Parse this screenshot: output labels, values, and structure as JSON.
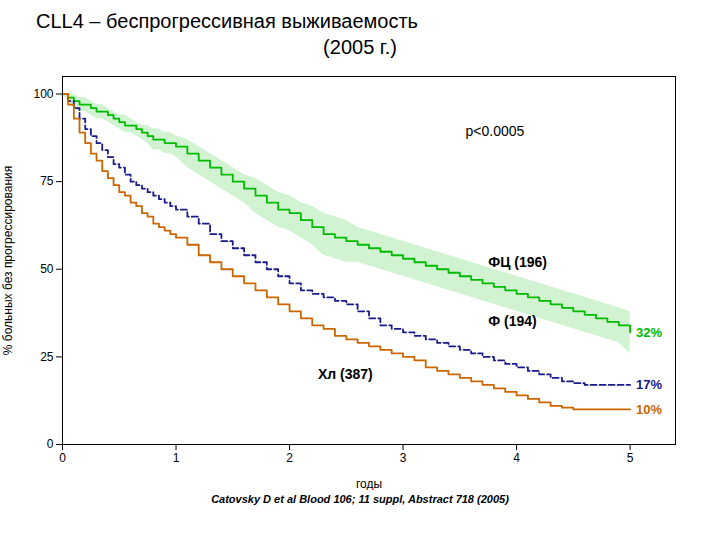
{
  "chart_data": {
    "type": "step",
    "title": "CLL4 – беспрогрессивная выживаемость",
    "subtitle": "(2005 г.)",
    "caption": "Catovsky D et al Blood 106; 11 suppl, Abstract 718 (2005)",
    "xlabel": "годы",
    "ylabel": "% больных без прогрессирования",
    "xlim": [
      0,
      5.4
    ],
    "ylim": [
      0,
      105
    ],
    "xticks": [
      0,
      1,
      2,
      3,
      4,
      5
    ],
    "yticks": [
      0,
      25,
      50,
      75,
      100
    ],
    "grid": false,
    "annotations": [
      {
        "text": "p<0.0005",
        "x": 3.55,
        "y": 91
      }
    ],
    "x": [
      0,
      0.05,
      0.1,
      0.15,
      0.2,
      0.25,
      0.3,
      0.35,
      0.4,
      0.45,
      0.5,
      0.55,
      0.6,
      0.65,
      0.7,
      0.75,
      0.8,
      0.85,
      0.9,
      0.95,
      1.0,
      1.1,
      1.2,
      1.3,
      1.4,
      1.5,
      1.6,
      1.7,
      1.8,
      1.9,
      2.0,
      2.1,
      2.2,
      2.3,
      2.4,
      2.5,
      2.6,
      2.7,
      2.8,
      2.9,
      3.0,
      3.1,
      3.2,
      3.3,
      3.4,
      3.5,
      3.6,
      3.7,
      3.8,
      3.9,
      4.0,
      4.1,
      4.2,
      4.3,
      4.4,
      4.5,
      4.6,
      4.7,
      4.8,
      4.9,
      5.0
    ],
    "series": [
      {
        "name": "ФЦ (196)",
        "color": "#00bb00",
        "line_style": "solid",
        "label_x": 3.75,
        "label_y": 52,
        "end_label": "32%",
        "values": [
          100,
          99,
          98,
          97,
          97,
          96,
          95,
          95,
          94,
          93,
          92,
          91,
          91,
          90,
          89,
          88,
          87,
          87,
          86,
          86,
          85,
          83,
          81,
          79,
          77,
          75,
          73,
          71,
          69,
          67,
          66,
          64,
          62,
          60,
          59,
          58,
          57,
          56,
          55,
          54,
          53,
          52,
          51,
          50,
          49,
          48,
          47,
          46,
          45,
          44,
          43,
          42,
          41,
          40,
          39,
          38,
          37,
          36,
          35,
          34,
          32
        ],
        "ci_upper": [
          100,
          100,
          100,
          99,
          99,
          98,
          97,
          97,
          96,
          95,
          94,
          94,
          93,
          92,
          91,
          91,
          90,
          90,
          89,
          89,
          88,
          87,
          85,
          83,
          81,
          79,
          77,
          76,
          74,
          72,
          71,
          69,
          68,
          66,
          65,
          64,
          62,
          61,
          60,
          59,
          58,
          57,
          56,
          55,
          54,
          53,
          52,
          51,
          50,
          49,
          48,
          47,
          46,
          45,
          44,
          43,
          42,
          41,
          40,
          39,
          38
        ],
        "ci_lower": [
          100,
          98,
          96,
          95,
          95,
          94,
          93,
          93,
          92,
          91,
          90,
          89,
          89,
          88,
          87,
          86,
          84,
          84,
          83,
          83,
          82,
          79,
          77,
          75,
          73,
          71,
          69,
          66,
          64,
          62,
          61,
          59,
          57,
          54,
          53,
          52,
          52,
          51,
          50,
          49,
          48,
          47,
          46,
          45,
          44,
          43,
          42,
          41,
          40,
          39,
          38,
          37,
          36,
          35,
          34,
          33,
          32,
          31,
          30,
          29,
          26
        ]
      },
      {
        "name": "Ф (194)",
        "color": "#1a1a8c",
        "line_style": "dashed",
        "label_x": 3.75,
        "label_y": 35,
        "end_label": "17%",
        "values": [
          100,
          98,
          96,
          93,
          90,
          88,
          86,
          84,
          82,
          80,
          79,
          77,
          75,
          74,
          73,
          72,
          71,
          70,
          69,
          68,
          67,
          65,
          63,
          60,
          58,
          56,
          54,
          52,
          50,
          48,
          46,
          44,
          43,
          42,
          41,
          40,
          38,
          36,
          34,
          33,
          32,
          31,
          30,
          29,
          28,
          27,
          26,
          25,
          24,
          23,
          22,
          21,
          20,
          19,
          18,
          17.5,
          17,
          17,
          17,
          17,
          17
        ]
      },
      {
        "name": "Хл (387)",
        "color": "#cc6600",
        "line_style": "solid",
        "label_x": 2.25,
        "label_y": 20,
        "end_label": "10%",
        "values": [
          100,
          97,
          93,
          89,
          86,
          83,
          81,
          78,
          76,
          74,
          72,
          71,
          69,
          68,
          66,
          65,
          63,
          62,
          61,
          60,
          59,
          57,
          54,
          52,
          50,
          48,
          46,
          44,
          42,
          40,
          38,
          36,
          34,
          33,
          31,
          30,
          29,
          28,
          27,
          26,
          25,
          24,
          22,
          21,
          20,
          19,
          18,
          17,
          16,
          15,
          14,
          13,
          12,
          11,
          10.5,
          10,
          10,
          10,
          10,
          10,
          10
        ]
      }
    ]
  }
}
